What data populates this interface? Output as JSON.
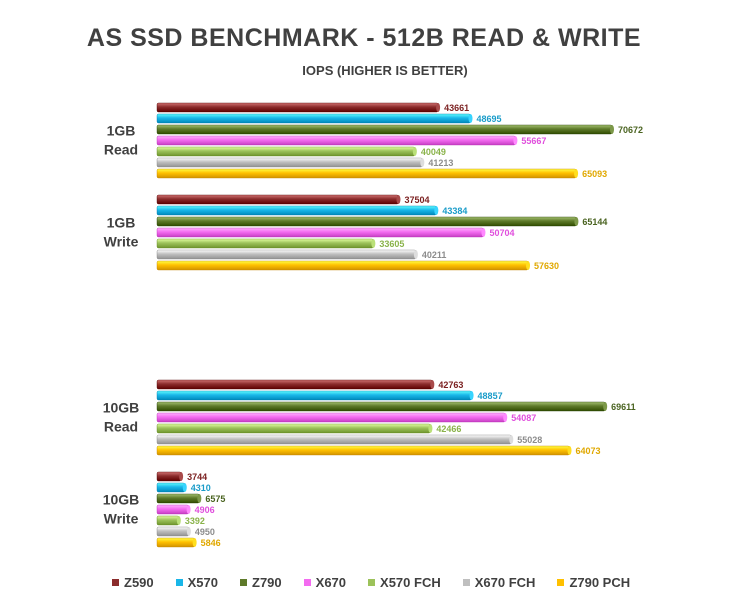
{
  "chart_data": {
    "type": "bar",
    "orientation": "horizontal",
    "title": "AS SSD BENCHMARK - 512B READ & WRITE",
    "subtitle": "IOPS (HIGHER IS BETTER)",
    "categories": [
      "1GB Read",
      "1GB Write",
      "10GB Read",
      "10GB Write"
    ],
    "series": [
      {
        "name": "Z590",
        "color": "#8B2C2C",
        "label_color": "#7a1f1f",
        "values": [
          43661,
          37504,
          42763,
          3744
        ]
      },
      {
        "name": "X570",
        "color": "#19B6E8",
        "label_color": "#1A9CC9",
        "values": [
          48695,
          43384,
          48857,
          4310
        ]
      },
      {
        "name": "Z790",
        "color": "#5E7A2A",
        "label_color": "#4a6320",
        "values": [
          70672,
          65144,
          69611,
          6575
        ]
      },
      {
        "name": "X670",
        "color": "#F36BF0",
        "label_color": "#E050DD",
        "values": [
          55667,
          50704,
          54087,
          4906
        ]
      },
      {
        "name": "X570 FCH",
        "color": "#9CC25A",
        "label_color": "#8AB34A",
        "values": [
          40049,
          33605,
          42466,
          3392
        ]
      },
      {
        "name": "X670 FCH",
        "color": "#BFBFBF",
        "label_color": "#8c8c8c",
        "values": [
          41213,
          40211,
          55028,
          4950
        ]
      },
      {
        "name": "Z790 PCH",
        "color": "#FFC000",
        "label_color": "#E0A800",
        "values": [
          65093,
          57630,
          64073,
          5846
        ]
      }
    ],
    "xlim": [
      0,
      70672
    ],
    "grid": false,
    "legend": "bottom"
  }
}
